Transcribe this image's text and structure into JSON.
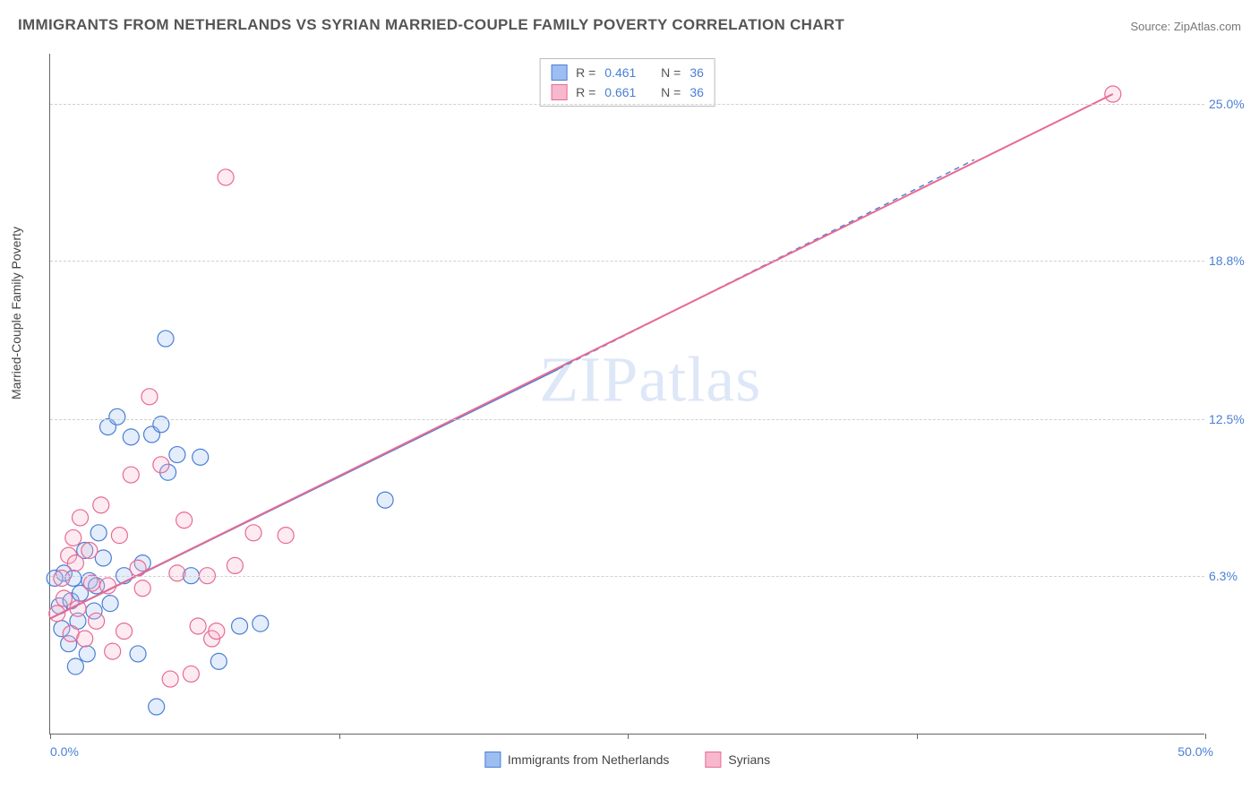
{
  "title": "IMMIGRANTS FROM NETHERLANDS VS SYRIAN MARRIED-COUPLE FAMILY POVERTY CORRELATION CHART",
  "source": "Source: ZipAtlas.com",
  "ylabel": "Married-Couple Family Poverty",
  "watermark": "ZIPatlas",
  "chart": {
    "type": "scatter",
    "xlim": [
      0,
      50
    ],
    "ylim": [
      0,
      27
    ],
    "background_color": "#ffffff",
    "grid_color": "#d0d0d0",
    "axis_color": "#666666",
    "tick_label_color": "#4a7fd6",
    "marker_radius": 9,
    "marker_stroke_width": 1.2,
    "marker_fill_opacity": 0.28,
    "line_width": 2,
    "dash_pattern": "6,5",
    "title_fontsize": 17,
    "label_fontsize": 14,
    "xticks": [
      {
        "v": 0,
        "label": "0.0%"
      },
      {
        "v": 12.5,
        "label": ""
      },
      {
        "v": 25,
        "label": ""
      },
      {
        "v": 37.5,
        "label": ""
      },
      {
        "v": 50,
        "label": "50.0%"
      }
    ],
    "yticks": [
      {
        "v": 6.3,
        "label": "6.3%"
      },
      {
        "v": 12.5,
        "label": "12.5%"
      },
      {
        "v": 18.8,
        "label": "18.8%"
      },
      {
        "v": 25.0,
        "label": "25.0%"
      }
    ]
  },
  "series": [
    {
      "name": "Immigrants from Netherlands",
      "color_stroke": "#4a7fd6",
      "color_fill": "#9ebdf0",
      "R": "0.461",
      "N": "36",
      "trend": {
        "x1": 0,
        "y1": 4.6,
        "x2_solid": 22,
        "y2_solid": 14.5,
        "x2_dash": 40,
        "y2_dash": 22.8
      },
      "points": [
        [
          0.4,
          5.1
        ],
        [
          0.5,
          4.2
        ],
        [
          0.6,
          6.4
        ],
        [
          0.8,
          3.6
        ],
        [
          0.9,
          5.3
        ],
        [
          1.0,
          6.2
        ],
        [
          1.1,
          2.7
        ],
        [
          1.2,
          4.5
        ],
        [
          1.3,
          5.6
        ],
        [
          1.5,
          7.3
        ],
        [
          1.6,
          3.2
        ],
        [
          1.7,
          6.1
        ],
        [
          1.9,
          4.9
        ],
        [
          2.0,
          5.9
        ],
        [
          2.1,
          8.0
        ],
        [
          2.3,
          7.0
        ],
        [
          2.5,
          12.2
        ],
        [
          2.6,
          5.2
        ],
        [
          2.9,
          12.6
        ],
        [
          3.2,
          6.3
        ],
        [
          3.5,
          11.8
        ],
        [
          3.8,
          3.2
        ],
        [
          4.0,
          6.8
        ],
        [
          4.4,
          11.9
        ],
        [
          4.6,
          1.1
        ],
        [
          4.8,
          12.3
        ],
        [
          5.0,
          15.7
        ],
        [
          5.1,
          10.4
        ],
        [
          5.5,
          11.1
        ],
        [
          6.1,
          6.3
        ],
        [
          6.5,
          11.0
        ],
        [
          7.3,
          2.9
        ],
        [
          8.2,
          4.3
        ],
        [
          9.1,
          4.4
        ],
        [
          14.5,
          9.3
        ],
        [
          0.2,
          6.2
        ]
      ]
    },
    {
      "name": "Syrians",
      "color_stroke": "#e86a93",
      "color_fill": "#f7b8cd",
      "R": "0.661",
      "N": "36",
      "trend": {
        "x1": 0,
        "y1": 4.6,
        "x2_solid": 46,
        "y2_solid": 25.4,
        "x2_dash": 46,
        "y2_dash": 25.4
      },
      "points": [
        [
          0.3,
          4.8
        ],
        [
          0.5,
          6.2
        ],
        [
          0.6,
          5.4
        ],
        [
          0.8,
          7.1
        ],
        [
          0.9,
          4.0
        ],
        [
          1.0,
          7.8
        ],
        [
          1.2,
          5.0
        ],
        [
          1.3,
          8.6
        ],
        [
          1.5,
          3.8
        ],
        [
          1.7,
          7.3
        ],
        [
          1.8,
          6.0
        ],
        [
          2.0,
          4.5
        ],
        [
          2.2,
          9.1
        ],
        [
          2.5,
          5.9
        ],
        [
          2.7,
          3.3
        ],
        [
          3.0,
          7.9
        ],
        [
          3.2,
          4.1
        ],
        [
          3.5,
          10.3
        ],
        [
          3.8,
          6.6
        ],
        [
          4.0,
          5.8
        ],
        [
          4.3,
          13.4
        ],
        [
          4.8,
          10.7
        ],
        [
          5.2,
          2.2
        ],
        [
          5.5,
          6.4
        ],
        [
          5.8,
          8.5
        ],
        [
          6.1,
          2.4
        ],
        [
          6.4,
          4.3
        ],
        [
          7.0,
          3.8
        ],
        [
          7.2,
          4.1
        ],
        [
          7.6,
          22.1
        ],
        [
          8.0,
          6.7
        ],
        [
          8.8,
          8.0
        ],
        [
          10.2,
          7.9
        ],
        [
          6.8,
          6.3
        ],
        [
          1.1,
          6.8
        ],
        [
          46.0,
          25.4
        ]
      ]
    }
  ],
  "legend_top": {
    "r_label": "R =",
    "n_label": "N ="
  },
  "legend_bottom": [
    {
      "label": "Immigrants from Netherlands",
      "fill": "#9ebdf0",
      "stroke": "#4a7fd6"
    },
    {
      "label": "Syrians",
      "fill": "#f7b8cd",
      "stroke": "#e86a93"
    }
  ]
}
